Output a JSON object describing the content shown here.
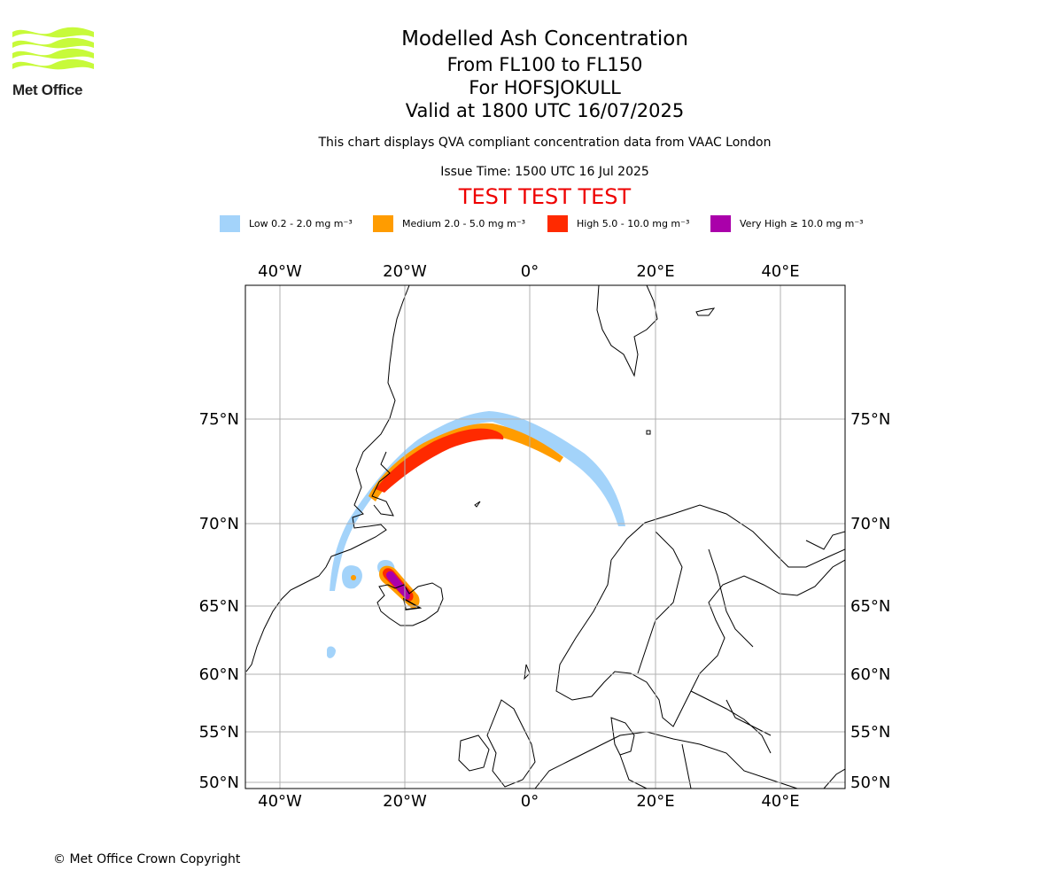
{
  "brand": {
    "name": "Met Office"
  },
  "header": {
    "title": "Modelled Ash Concentration",
    "levels": "From FL100 to FL150",
    "volcano": "For HOFSJOKULL",
    "valid": "Valid at 1800 UTC 16/07/2025",
    "description": "This chart displays QVA compliant concentration data from VAAC London",
    "issue": "Issue Time: 1500 UTC 16 Jul 2025",
    "test_banner": "TEST TEST TEST"
  },
  "legend": [
    {
      "label": "Low 0.2 - 2.0 mg m⁻³",
      "color": "#a3d3fa"
    },
    {
      "label": "Medium 2.0 - 5.0 mg m⁻³",
      "color": "#ff9c00"
    },
    {
      "label": "High 5.0 - 10.0 mg m⁻³",
      "color": "#ff2a00"
    },
    {
      "label": "Very High ≥ 10.0 mg m⁻³",
      "color": "#aa00aa"
    }
  ],
  "map": {
    "lon_labels": [
      "40°W",
      "20°W",
      "0°",
      "20°E",
      "40°E"
    ],
    "lat_labels": [
      "75°N",
      "70°N",
      "65°N",
      "60°N",
      "55°N",
      "50°N"
    ],
    "grid_color": "#b0b0b0",
    "coast_color": "#000000"
  },
  "footer": {
    "copyright": "© Met Office Crown Copyright"
  }
}
